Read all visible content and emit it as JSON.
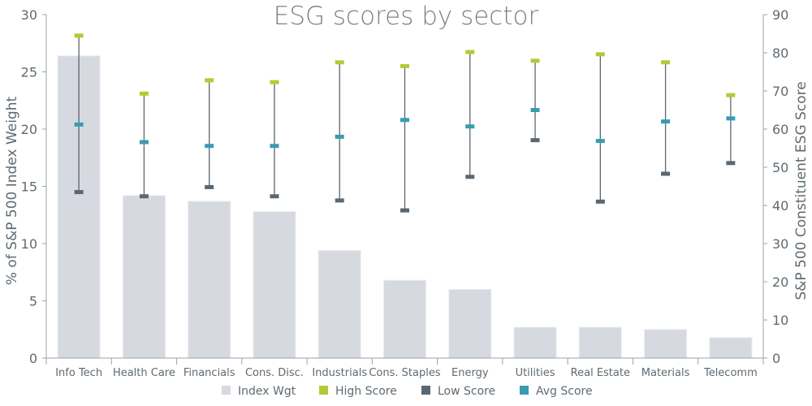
{
  "chart_data": {
    "type": "bar",
    "title": "ESG scores by sector",
    "categories": [
      "Info Tech",
      "Health Care",
      "Financials",
      "Cons. Disc.",
      "Industrials",
      "Cons. Staples",
      "Energy",
      "Utilities",
      "Real Estate",
      "Materials",
      "Telecomm"
    ],
    "ylabel_left": "% of S&P 500 Index Weight",
    "ylabel_right": "S&P 500 Constituent ESG Score",
    "ylim_left": [
      0,
      30
    ],
    "ylim_right": [
      0,
      90
    ],
    "yticks_left": [
      0,
      5,
      10,
      15,
      20,
      25,
      30
    ],
    "yticks_right": [
      0,
      10,
      20,
      30,
      40,
      50,
      60,
      70,
      80,
      90
    ],
    "grid": false,
    "legend_position": "bottom",
    "series": [
      {
        "name": "Index Wgt",
        "type": "bar",
        "axis": "left",
        "color": "#d6d9e0",
        "values": [
          26.4,
          14.2,
          13.7,
          12.8,
          9.4,
          6.8,
          6.0,
          2.7,
          2.7,
          2.5,
          1.8
        ]
      },
      {
        "name": "High Score",
        "type": "marker",
        "axis": "right",
        "color": "#b5c935",
        "values": [
          84.5,
          69.3,
          72.8,
          72.3,
          77.5,
          76.5,
          80.2,
          77.9,
          79.6,
          77.5,
          68.9
        ]
      },
      {
        "name": "Low Score",
        "type": "marker",
        "axis": "right",
        "color": "#5b6770",
        "values": [
          43.5,
          42.4,
          44.8,
          42.4,
          41.3,
          38.7,
          47.5,
          57.1,
          41.0,
          48.3,
          51.1
        ]
      },
      {
        "name": "Avg Score",
        "type": "marker",
        "axis": "right",
        "color": "#3a9bb0",
        "values": [
          61.2,
          56.6,
          55.6,
          55.6,
          58.0,
          62.4,
          60.7,
          65.0,
          56.9,
          62.0,
          62.8
        ]
      }
    ]
  }
}
